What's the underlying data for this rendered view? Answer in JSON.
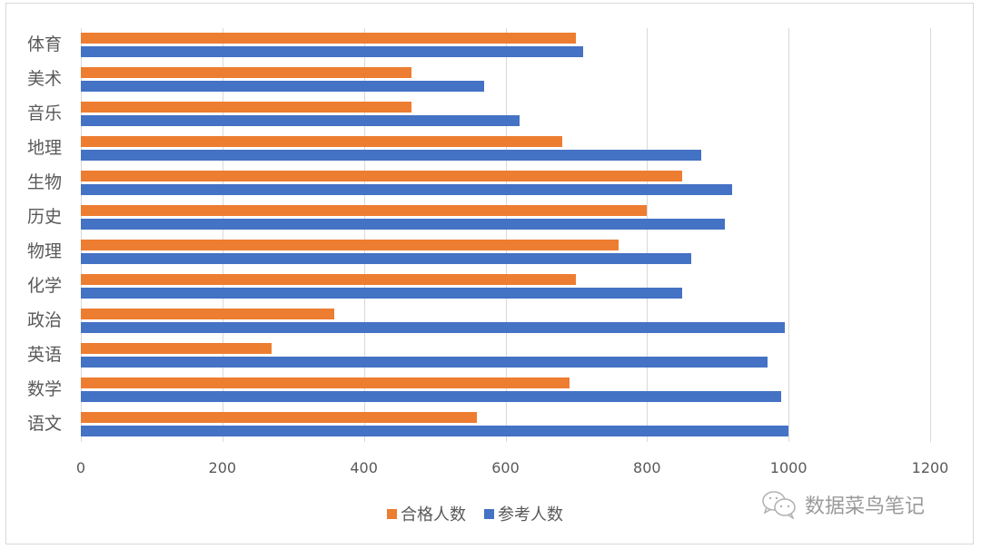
{
  "chart_data": {
    "type": "bar",
    "orientation": "horizontal",
    "title": "",
    "xlabel": "",
    "ylabel": "",
    "categories": [
      "语文",
      "数学",
      "英语",
      "政治",
      "化学",
      "物理",
      "历史",
      "生物",
      "地理",
      "音乐",
      "美术",
      "体育"
    ],
    "series": [
      {
        "name": "合格人数",
        "color": "#ED7D31",
        "values": [
          560,
          690,
          270,
          358,
          700,
          760,
          800,
          850,
          680,
          467,
          467,
          700
        ]
      },
      {
        "name": "参考人数",
        "color": "#4472C4",
        "values": [
          1000,
          990,
          970,
          995,
          850,
          863,
          910,
          920,
          877,
          620,
          570,
          710
        ]
      }
    ],
    "xlim": [
      0,
      1200
    ],
    "xticks": [
      0,
      200,
      400,
      600,
      800,
      1000,
      1200
    ],
    "grid": "vertical",
    "legend_position": "bottom"
  },
  "axis": {
    "ticks": [
      "0",
      "200",
      "400",
      "600",
      "800",
      "1000",
      "1200"
    ]
  },
  "categories_top_to_bottom": [
    "体育",
    "美术",
    "音乐",
    "地理",
    "生物",
    "历史",
    "物理",
    "化学",
    "政治",
    "英语",
    "数学",
    "语文"
  ],
  "legend": {
    "items": [
      {
        "label": "合格人数",
        "color": "#ED7D31"
      },
      {
        "label": "参考人数",
        "color": "#4472C4"
      }
    ]
  },
  "watermark": {
    "icon": "wechat-icon",
    "text": "数据菜鸟笔记"
  }
}
